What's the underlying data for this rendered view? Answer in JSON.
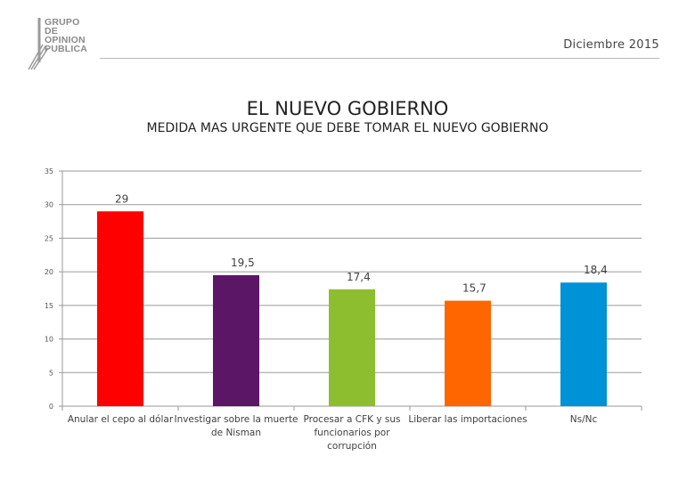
{
  "header": {
    "logo_lines": [
      "GRUPO",
      "DE",
      "OPINION",
      "PUBLICA"
    ],
    "date": "Diciembre 2015"
  },
  "chart_data": {
    "type": "bar",
    "title": "EL NUEVO GOBIERNO",
    "subtitle": "MEDIDA MAS URGENTE QUE DEBE TOMAR EL NUEVO GOBIERNO",
    "categories": [
      [
        "Anular el cepo al dólar"
      ],
      [
        "Investigar sobre la muerte",
        "de Nisman"
      ],
      [
        "Procesar a CFK y sus",
        "funcionarios por",
        "corrupción"
      ],
      [
        "Liberar las importaciones"
      ],
      [
        "Ns/Nc"
      ]
    ],
    "values": [
      29,
      19.5,
      17.4,
      15.7,
      18.4
    ],
    "data_labels": [
      "29",
      "19,5",
      "17,4",
      "15,7",
      "18,4"
    ],
    "colors": [
      "#ff0000",
      "#5c1666",
      "#8dbe2f",
      "#ff6600",
      "#0092d6"
    ],
    "ylim": [
      0,
      35
    ],
    "yticks": [
      0,
      5,
      10,
      15,
      20,
      25,
      30,
      35
    ],
    "grid": true
  }
}
